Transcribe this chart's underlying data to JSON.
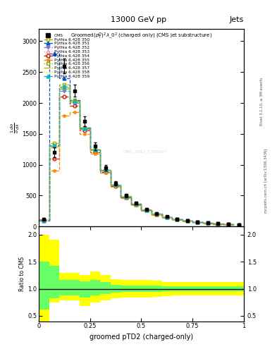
{
  "title_top": "13000 GeV pp",
  "title_right": "Jets",
  "plot_title": "Groomed$(p_T^D)^2\\lambda\\_0^2$ (charged only) (CMS jet substructure)",
  "xlabel": "groomed pTD2 (charged-only)",
  "ylabel_ratio": "Ratio to CMS",
  "right_label": "Rivet 3.1.10, ≥ 3M events",
  "right_label2": "mcplots.cern.ch [arXiv:1306.3436]",
  "watermark": "CMS_2012_1300167",
  "x_bins": [
    0.0,
    0.05,
    0.1,
    0.15,
    0.2,
    0.25,
    0.3,
    0.35,
    0.4,
    0.45,
    0.5,
    0.55,
    0.6,
    0.65,
    0.7,
    0.75,
    0.8,
    0.85,
    0.9,
    0.95,
    1.0
  ],
  "cms_data": [
    120,
    1200,
    2600,
    2200,
    1700,
    1300,
    950,
    700,
    500,
    380,
    280,
    210,
    160,
    120,
    95,
    75,
    58,
    45,
    35,
    27
  ],
  "cms_errors": [
    15,
    80,
    120,
    100,
    80,
    60,
    45,
    35,
    25,
    20,
    15,
    12,
    10,
    8,
    6,
    5,
    4,
    3,
    3,
    2
  ],
  "series": [
    {
      "label": "Pythia 6.428 350",
      "color": "#aaaa00",
      "linestyle": "--",
      "marker": "s",
      "markerfacecolor": "none",
      "values": [
        100,
        1350,
        2300,
        2050,
        1600,
        1250,
        920,
        680,
        490,
        370,
        275,
        205,
        155,
        118,
        92,
        72,
        56,
        43,
        33,
        26
      ]
    },
    {
      "label": "Pythia 6.428 351",
      "color": "#0055cc",
      "linestyle": "--",
      "marker": "^",
      "markerfacecolor": "#0055cc",
      "values": [
        90,
        2800,
        2400,
        2050,
        1600,
        1250,
        900,
        660,
        470,
        355,
        260,
        195,
        148,
        112,
        88,
        69,
        54,
        41,
        32,
        25
      ]
    },
    {
      "label": "Pythia 6.428 352",
      "color": "#7777cc",
      "linestyle": "-.",
      "marker": "v",
      "markerfacecolor": "#7777cc",
      "values": [
        95,
        1300,
        2200,
        2000,
        1580,
        1230,
        905,
        670,
        480,
        362,
        268,
        200,
        152,
        115,
        90,
        70,
        55,
        42,
        32,
        25
      ]
    },
    {
      "label": "Pythia 6.428 353",
      "color": "#ff88bb",
      "linestyle": ":",
      "marker": "^",
      "markerfacecolor": "none",
      "values": [
        110,
        1300,
        2250,
        2020,
        1590,
        1240,
        910,
        672,
        482,
        364,
        270,
        202,
        153,
        116,
        91,
        71,
        55,
        42,
        33,
        26
      ]
    },
    {
      "label": "Pythia 6.428 354",
      "color": "#cc2200",
      "linestyle": "--",
      "marker": "o",
      "markerfacecolor": "none",
      "values": [
        105,
        1100,
        2100,
        1950,
        1550,
        1200,
        885,
        652,
        468,
        353,
        261,
        195,
        148,
        112,
        88,
        68,
        53,
        40,
        31,
        24
      ]
    },
    {
      "label": "Pythia 6.428 355",
      "color": "#ff8800",
      "linestyle": "--",
      "marker": "*",
      "markerfacecolor": "#ff8800",
      "values": [
        115,
        900,
        1800,
        1850,
        1500,
        1180,
        870,
        640,
        458,
        345,
        255,
        190,
        144,
        109,
        86,
        67,
        52,
        39,
        30,
        24
      ]
    },
    {
      "label": "Pythia 6.428 356",
      "color": "#88aa00",
      "linestyle": ":",
      "marker": "s",
      "markerfacecolor": "none",
      "values": [
        100,
        1300,
        2250,
        2030,
        1600,
        1245,
        915,
        675,
        484,
        365,
        270,
        202,
        153,
        116,
        91,
        71,
        55,
        42,
        33,
        26
      ]
    },
    {
      "label": "Pythia 6.428 357",
      "color": "#ccaa00",
      "linestyle": "-.",
      "marker": "None",
      "markerfacecolor": "none",
      "values": [
        105,
        1280,
        2230,
        2010,
        1585,
        1238,
        910,
        670,
        480,
        362,
        268,
        200,
        152,
        115,
        90,
        70,
        54,
        42,
        32,
        25
      ]
    },
    {
      "label": "Pythia 6.428 358",
      "color": "#ccee00",
      "linestyle": ":",
      "marker": "None",
      "markerfacecolor": "none",
      "values": [
        102,
        1290,
        2240,
        2015,
        1587,
        1240,
        912,
        672,
        481,
        363,
        269,
        201,
        152,
        115,
        91,
        71,
        55,
        42,
        32,
        25
      ]
    },
    {
      "label": "Pythia 6.428 359",
      "color": "#00bbcc",
      "linestyle": "--",
      "marker": "^",
      "markerfacecolor": "#00bbcc",
      "values": [
        108,
        1310,
        2260,
        2025,
        1592,
        1242,
        913,
        673,
        482,
        364,
        270,
        202,
        153,
        116,
        91,
        71,
        55,
        42,
        33,
        26
      ]
    }
  ],
  "ratio_yellow_lo": [
    0.4,
    0.75,
    0.78,
    0.78,
    0.68,
    0.75,
    0.78,
    0.82,
    0.84,
    0.84,
    0.84,
    0.85,
    0.87,
    0.88,
    0.88,
    0.88,
    0.88,
    0.88,
    0.88,
    0.88
  ],
  "ratio_yellow_hi": [
    2.0,
    1.9,
    1.3,
    1.3,
    1.25,
    1.32,
    1.25,
    1.18,
    1.16,
    1.16,
    1.16,
    1.15,
    1.13,
    1.12,
    1.12,
    1.12,
    1.12,
    1.12,
    1.12,
    1.12
  ],
  "ratio_green_lo": [
    0.62,
    0.83,
    0.88,
    0.88,
    0.84,
    0.88,
    0.9,
    0.93,
    0.94,
    0.94,
    0.94,
    0.94,
    0.95,
    0.96,
    0.96,
    0.96,
    0.96,
    0.96,
    0.96,
    0.96
  ],
  "ratio_green_hi": [
    1.5,
    1.42,
    1.16,
    1.16,
    1.14,
    1.16,
    1.12,
    1.07,
    1.06,
    1.06,
    1.06,
    1.06,
    1.05,
    1.04,
    1.04,
    1.04,
    1.04,
    1.04,
    1.04,
    1.04
  ],
  "ylim_main": [
    0,
    3200
  ],
  "yticks_main": [
    0,
    500,
    1000,
    1500,
    2000,
    2500,
    3000
  ],
  "ylim_ratio": [
    0.4,
    2.1
  ],
  "yticks_ratio": [
    0.5,
    1.0,
    1.5,
    2.0
  ]
}
